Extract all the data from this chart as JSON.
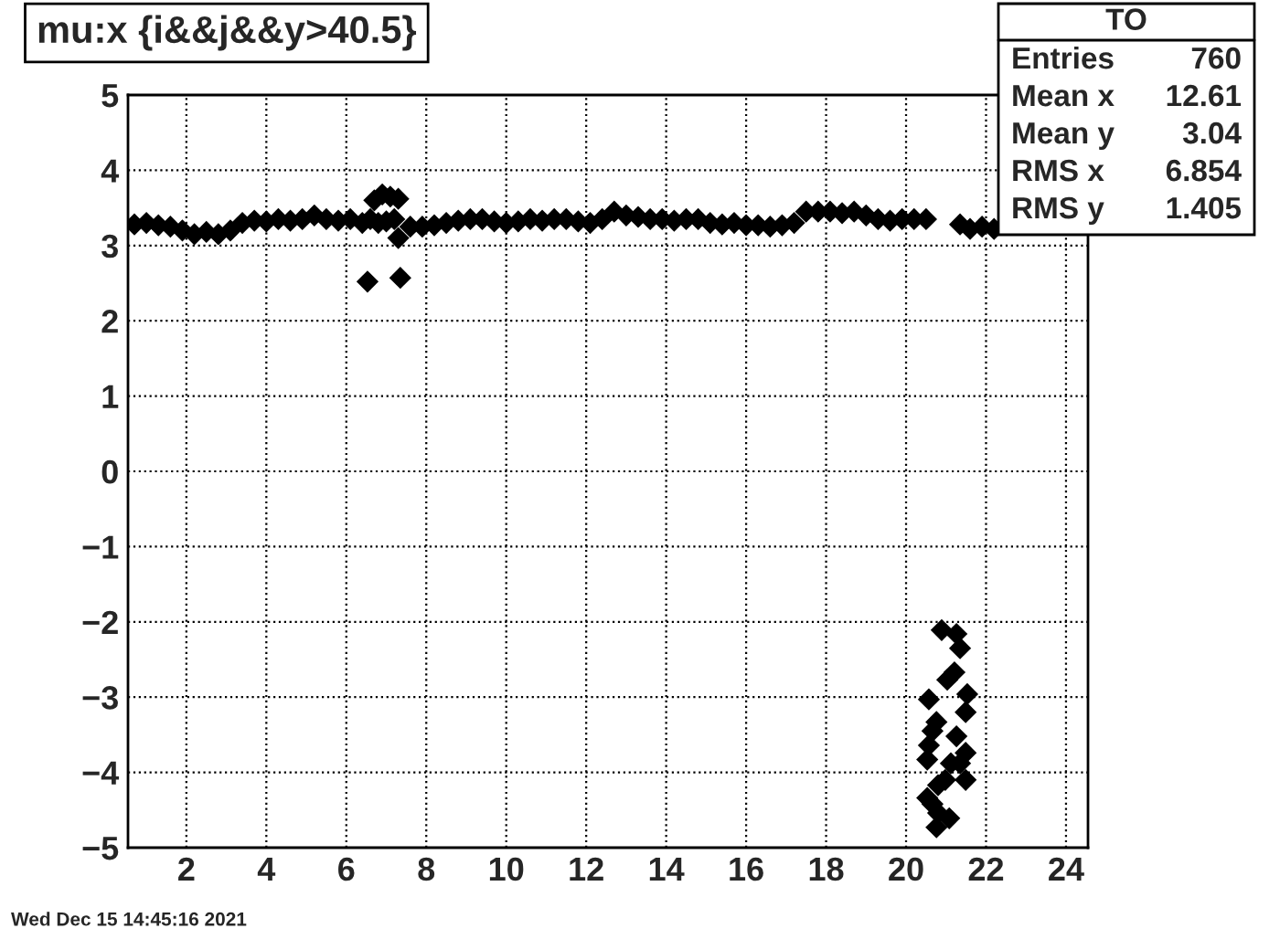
{
  "chart_data": {
    "type": "scatter",
    "title": "mu:x {i&&j&&y>40.5}",
    "xlim": [
      0.54,
      24.55
    ],
    "ylim": [
      -5,
      5
    ],
    "xticks": [
      2,
      4,
      6,
      8,
      10,
      12,
      14,
      16,
      18,
      20,
      22,
      24
    ],
    "yticks": [
      {
        "value": -5,
        "label": "−5"
      },
      {
        "value": -4,
        "label": "−4"
      },
      {
        "value": -3,
        "label": "−3"
      },
      {
        "value": -2,
        "label": "−2"
      },
      {
        "value": -1,
        "label": "−1"
      },
      0,
      1,
      2,
      3,
      4,
      5
    ],
    "grid": true,
    "marker": "diamond",
    "series": [
      {
        "color": "#000000",
        "x": [
          0.7,
          1.0,
          1.3,
          1.6,
          1.9,
          2.2,
          2.5,
          2.8,
          3.1,
          3.4,
          3.7,
          4.0,
          4.3,
          4.6,
          4.9,
          5.2,
          5.5,
          5.8,
          6.1,
          6.4,
          6.6,
          6.8,
          7.0,
          7.2,
          6.7,
          6.9,
          7.1,
          7.3,
          7.3,
          7.6,
          7.9,
          8.2,
          8.5,
          8.8,
          9.1,
          9.4,
          9.7,
          10.0,
          10.3,
          10.6,
          10.9,
          11.2,
          11.5,
          11.8,
          12.1,
          12.4,
          12.7,
          13.0,
          13.3,
          13.6,
          13.9,
          14.2,
          14.5,
          14.8,
          15.1,
          15.4,
          15.7,
          16.0,
          16.3,
          16.6,
          16.9,
          17.2,
          17.5,
          17.8,
          18.1,
          18.4,
          18.7,
          19.0,
          19.3,
          19.6,
          19.9,
          20.2,
          20.5,
          21.35,
          21.6,
          21.9,
          22.2,
          6.53,
          7.35,
          20.89,
          21.26,
          21.35,
          21.21,
          21.03,
          21.53,
          20.57,
          21.49,
          20.76,
          20.66,
          21.26,
          20.57,
          21.49,
          20.53,
          21.12,
          21.35,
          21.49,
          20.98,
          20.8,
          20.53,
          20.66,
          20.8,
          21.08,
          20.76
        ],
        "values": [
          3.28,
          3.3,
          3.27,
          3.25,
          3.2,
          3.15,
          3.18,
          3.15,
          3.2,
          3.3,
          3.33,
          3.32,
          3.35,
          3.33,
          3.35,
          3.4,
          3.35,
          3.33,
          3.35,
          3.3,
          3.35,
          3.3,
          3.32,
          3.35,
          3.6,
          3.68,
          3.65,
          3.62,
          3.1,
          3.25,
          3.25,
          3.27,
          3.3,
          3.33,
          3.35,
          3.35,
          3.32,
          3.3,
          3.32,
          3.35,
          3.33,
          3.35,
          3.35,
          3.32,
          3.3,
          3.35,
          3.45,
          3.4,
          3.38,
          3.35,
          3.35,
          3.33,
          3.35,
          3.35,
          3.3,
          3.28,
          3.3,
          3.27,
          3.27,
          3.25,
          3.27,
          3.3,
          3.45,
          3.45,
          3.45,
          3.43,
          3.45,
          3.4,
          3.35,
          3.33,
          3.35,
          3.35,
          3.35,
          3.28,
          3.22,
          3.25,
          3.22,
          2.52,
          2.57,
          -2.11,
          -2.16,
          -2.35,
          -2.67,
          -2.77,
          -2.96,
          -3.03,
          -3.2,
          -3.33,
          -3.45,
          -3.52,
          -3.64,
          -3.74,
          -3.83,
          -3.88,
          -3.88,
          -4.1,
          -4.1,
          -4.17,
          -4.34,
          -4.42,
          -4.54,
          -4.61,
          -4.73
        ]
      }
    ],
    "annotations": [
      "TO",
      "Entries",
      "760",
      "Mean x",
      "12.61",
      "Mean y",
      "3.04",
      "RMS x",
      "6.854",
      "RMS y",
      "1.405",
      "Wed Dec 15 14:45:16 2021"
    ]
  }
}
